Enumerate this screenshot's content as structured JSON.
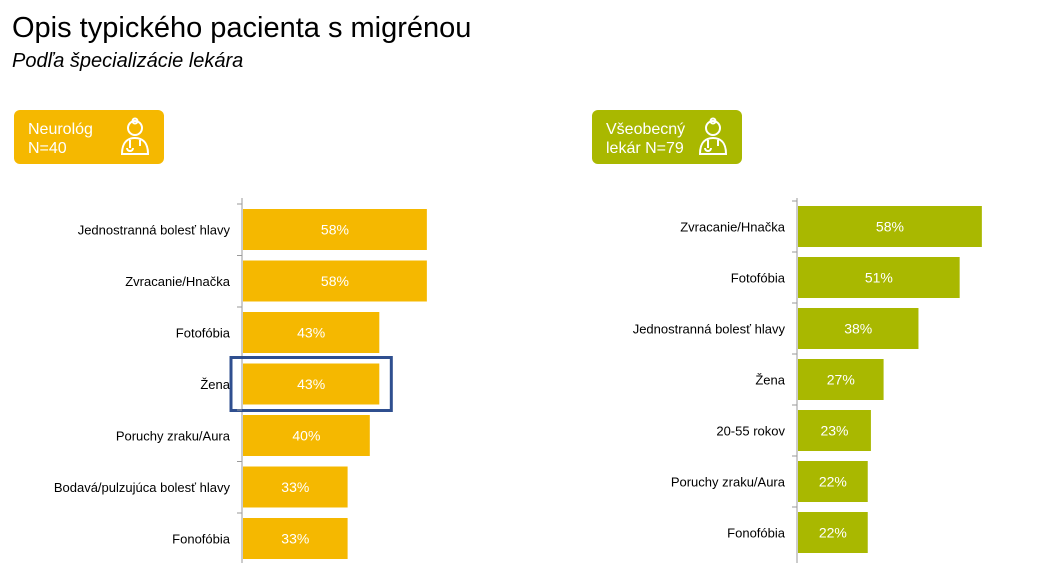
{
  "header": {
    "title": "Opis typického pacienta s migrénou",
    "subtitle": "Podľa špecializácie lekára"
  },
  "badges": [
    {
      "line1": "Neurológ",
      "line2": "N=40",
      "color": "#f5b800",
      "icon": "doctor-icon"
    },
    {
      "line1": "Všeobecný",
      "line2": "lekár N=79",
      "color": "#a9b800",
      "icon": "doctor-icon"
    }
  ],
  "chart_data": [
    {
      "type": "bar",
      "orientation": "horizontal",
      "group": "Neurológ N=40",
      "categories": [
        "Jednostranná bolesť hlavy",
        "Zvracanie/Hnačka",
        "Fotofóbia",
        "Žena",
        "Poruchy zraku/Aura",
        "Bodavá/pulzujúca bolesť hlavy",
        "Fonofóbia"
      ],
      "values": [
        58,
        58,
        43,
        43,
        40,
        33,
        33
      ],
      "labels": [
        "58%",
        "58%",
        "43%",
        "43%",
        "40%",
        "33%",
        "33%"
      ],
      "color": "#f5b800",
      "highlight": "Žena",
      "highlight_color": "#2f4f8f"
    },
    {
      "type": "bar",
      "orientation": "horizontal",
      "group": "Všeobecný lekár N=79",
      "categories": [
        "Zvracanie/Hnačka",
        "Fotofóbia",
        "Jednostranná bolesť hlavy",
        "Žena",
        "20-55 rokov",
        "Poruchy zraku/Aura",
        "Fonofóbia"
      ],
      "values": [
        58,
        51,
        38,
        27,
        23,
        22,
        22
      ],
      "labels": [
        "58%",
        "51%",
        "38%",
        "27%",
        "23%",
        "22%",
        "22%"
      ],
      "color": "#a9b800"
    }
  ]
}
